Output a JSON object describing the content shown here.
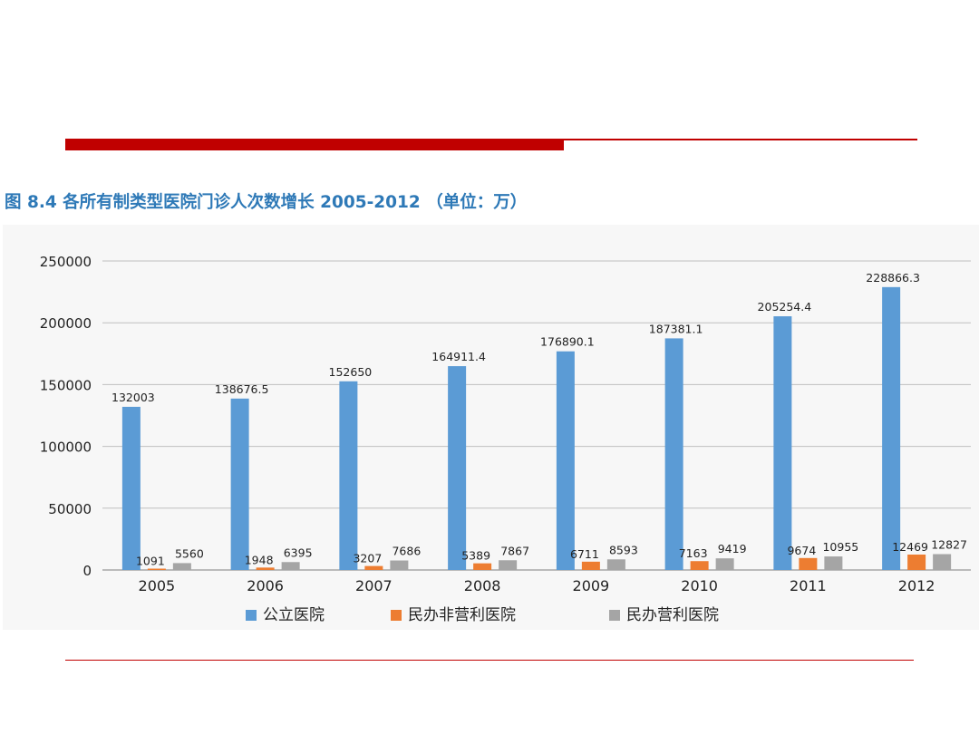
{
  "title": "图 8.4    各所有制类型医院门诊人次数增长 2005-2012 （单位：万）",
  "colors": {
    "accent": "#c00000",
    "title": "#2e79b7"
  },
  "chart_data": {
    "type": "bar",
    "title": "图 8.4    各所有制类型医院门诊人次数增长 2005-2012 （单位：万）",
    "xlabel": "",
    "ylabel": "",
    "categories": [
      "2005",
      "2006",
      "2007",
      "2008",
      "2009",
      "2010",
      "2011",
      "2012"
    ],
    "ylim": [
      0,
      250000
    ],
    "yticks": [
      "0",
      "50000",
      "100000",
      "150000",
      "200000",
      "250000"
    ],
    "grid": true,
    "legend_position": "bottom",
    "series": [
      {
        "name": "公立医院",
        "color": "#5b9bd5",
        "values": [
          132003,
          138676.5,
          152650,
          164911.4,
          176890.1,
          187381.1,
          205254.4,
          228866.3
        ],
        "labels": [
          "132003",
          "138676.5",
          "152650",
          "164911.4",
          "176890.1",
          "187381.1",
          "205254.4",
          "228866.3"
        ]
      },
      {
        "name": "民办非营利医院",
        "color": "#ed7d31",
        "values": [
          1091,
          1948,
          3207,
          5389,
          6711,
          7163,
          9674,
          12469
        ],
        "labels": [
          "1091",
          "1948",
          "3207",
          "5389",
          "6711",
          "7163",
          "9674",
          "12469"
        ]
      },
      {
        "name": "民办营利医院",
        "color": "#a5a5a5",
        "values": [
          5560,
          6395,
          7686,
          7867,
          8593,
          9419,
          10955,
          12827
        ],
        "labels": [
          "5560",
          "6395",
          "7686",
          "7867",
          "8593",
          "9419",
          "10955",
          "12827"
        ]
      }
    ]
  }
}
